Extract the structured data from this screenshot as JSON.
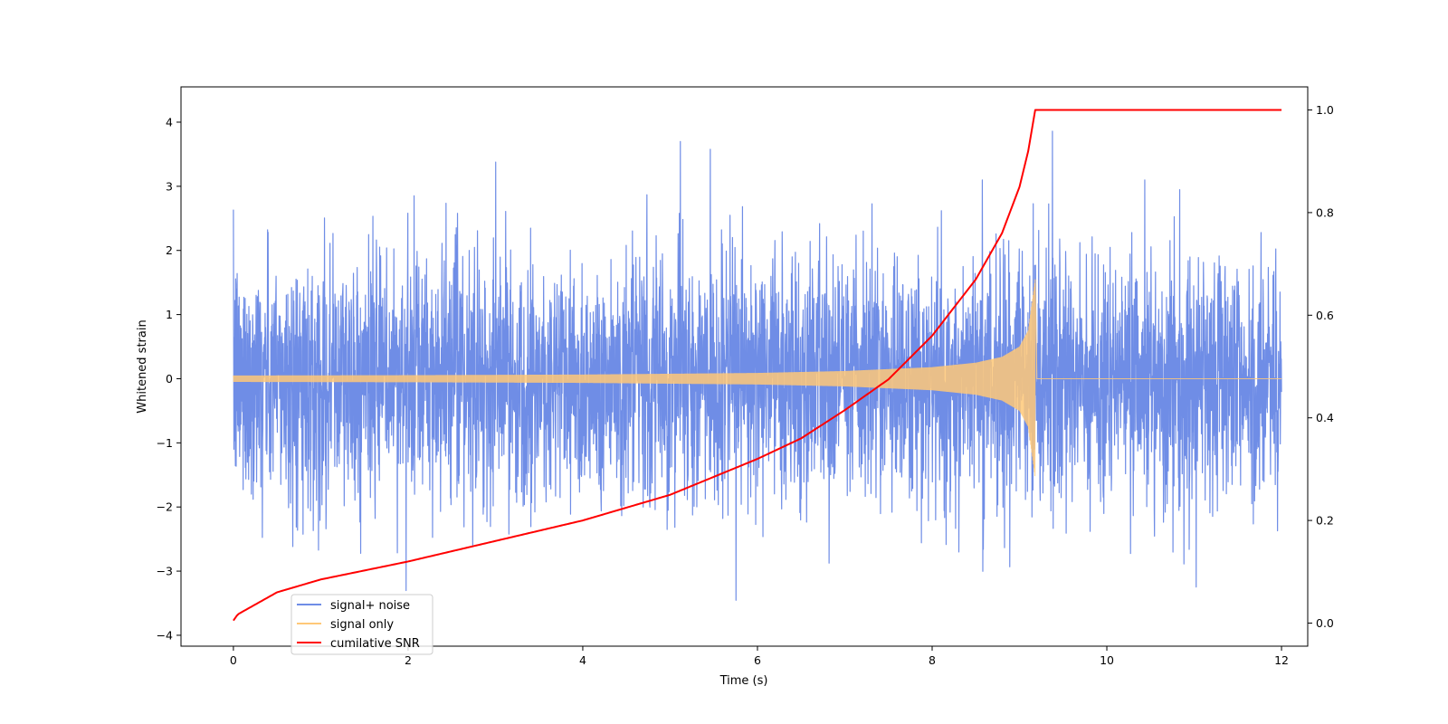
{
  "chart_data": {
    "type": "line",
    "title": "",
    "xlabel": "Time (s)",
    "ylabel": "Whitened strain",
    "xlim": [
      -0.6,
      12.3
    ],
    "ylim": [
      -4.17,
      4.55
    ],
    "y2lim": [
      -0.045,
      1.045
    ],
    "x_ticks": [
      0,
      2,
      4,
      6,
      8,
      10,
      12
    ],
    "y_ticks": [
      -4,
      -3,
      -2,
      -1,
      0,
      1,
      2,
      3,
      4
    ],
    "y2_ticks": [
      0.0,
      0.2,
      0.4,
      0.6,
      0.8,
      1.0
    ],
    "x_tick_labels": [
      "0",
      "2",
      "4",
      "6",
      "8",
      "10",
      "12"
    ],
    "y_tick_labels": [
      "−4",
      "−3",
      "−2",
      "−1",
      "0",
      "1",
      "2",
      "3",
      "4"
    ],
    "y2_tick_labels": [
      "0.0",
      "0.2",
      "0.4",
      "0.6",
      "0.8",
      "1.0"
    ],
    "grid": false,
    "legend_position": "lower-left",
    "colors": {
      "signal_noise": "#6f8de6",
      "signal_only": "#ffc878",
      "snr": "#ff0000"
    },
    "series": [
      {
        "name": "signal+ noise",
        "axis": "left",
        "description_values": "noise band roughly ±2 with peaks near ±3.5 to ±4.1",
        "x": [
          0,
          12
        ],
        "noise_std": 0.95,
        "peak_max": 4.15,
        "peak_min": -3.75
      },
      {
        "name": "signal only",
        "axis": "left",
        "x": [
          0.0,
          2.0,
          4.0,
          6.0,
          7.0,
          8.0,
          8.5,
          8.8,
          9.0,
          9.1,
          9.18,
          9.2,
          12.0
        ],
        "envelope": [
          0.05,
          0.055,
          0.065,
          0.09,
          0.12,
          0.18,
          0.25,
          0.34,
          0.5,
          0.75,
          1.55,
          0.0,
          0.0
        ]
      },
      {
        "name": "cumilative SNR",
        "axis": "right",
        "x": [
          0.0,
          0.05,
          0.5,
          1.0,
          2.0,
          3.0,
          4.0,
          5.0,
          6.0,
          6.5,
          7.0,
          7.5,
          8.0,
          8.5,
          8.8,
          9.0,
          9.1,
          9.18,
          9.2,
          12.0
        ],
        "values": [
          0.005,
          0.017,
          0.06,
          0.085,
          0.12,
          0.16,
          0.2,
          0.25,
          0.32,
          0.36,
          0.415,
          0.475,
          0.56,
          0.67,
          0.76,
          0.85,
          0.92,
          1.0,
          1.0,
          1.0
        ]
      }
    ]
  }
}
